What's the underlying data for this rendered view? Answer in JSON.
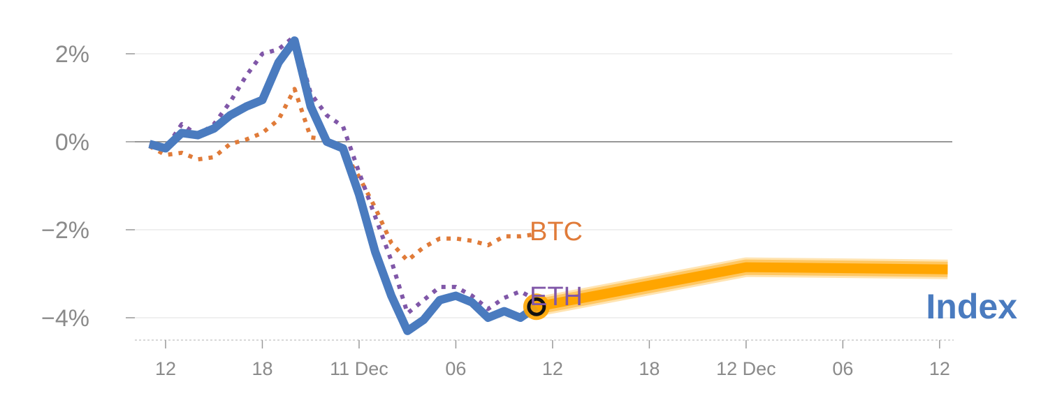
{
  "chart_data": {
    "type": "line",
    "y_tick_labels": [
      "2%",
      "0%",
      "−2%",
      "−4%"
    ],
    "y_tick_values": [
      2,
      0,
      -2,
      -4
    ],
    "x_tick_labels": [
      "12",
      "18",
      "11 Dec",
      "06",
      "12",
      "18",
      "12 Dec",
      "06",
      "12"
    ],
    "x_tick_values": [
      12,
      18,
      24,
      30,
      36,
      42,
      48,
      54,
      60
    ],
    "xlim": [
      10.5,
      61
    ],
    "ylim": [
      -4.5,
      2.3
    ],
    "grid": true,
    "zero_line": true,
    "series": [
      {
        "name": "BTC",
        "color": "#e07b39",
        "style": "dotted",
        "x": [
          11,
          12,
          13,
          14,
          15,
          16,
          17,
          18,
          19,
          20,
          21,
          22,
          23,
          24,
          25,
          26,
          27,
          28,
          29,
          30,
          31,
          32,
          33,
          34,
          35
        ],
        "y": [
          -0.1,
          -0.3,
          -0.25,
          -0.4,
          -0.35,
          -0.05,
          0.05,
          0.2,
          0.5,
          1.2,
          0.1,
          0.05,
          -0.2,
          -0.8,
          -1.5,
          -2.3,
          -2.7,
          -2.4,
          -2.2,
          -2.2,
          -2.25,
          -2.35,
          -2.15,
          -2.15,
          -2.1
        ]
      },
      {
        "name": "ETH",
        "color": "#8057a8",
        "style": "dotted",
        "x": [
          11,
          12,
          13,
          14,
          15,
          16,
          17,
          18,
          19,
          20,
          21,
          22,
          23,
          24,
          25,
          26,
          27,
          28,
          29,
          30,
          31,
          32,
          33,
          34,
          35
        ],
        "y": [
          -0.05,
          -0.15,
          0.4,
          0.15,
          0.4,
          0.9,
          1.5,
          2.0,
          2.1,
          2.4,
          1.1,
          0.6,
          0.35,
          -0.7,
          -1.7,
          -2.7,
          -3.9,
          -3.6,
          -3.3,
          -3.3,
          -3.5,
          -3.8,
          -3.55,
          -3.4,
          -3.6
        ]
      },
      {
        "name": "Index",
        "color": "#4a7bbf",
        "style": "solid",
        "x": [
          11,
          12,
          13,
          14,
          15,
          16,
          17,
          18,
          19,
          20,
          21,
          22,
          23,
          24,
          25,
          26,
          27,
          28,
          29,
          30,
          31,
          32,
          33,
          34,
          35
        ],
        "y": [
          -0.05,
          -0.15,
          0.2,
          0.15,
          0.3,
          0.6,
          0.8,
          0.95,
          1.8,
          2.3,
          0.8,
          0.0,
          -0.15,
          -1.2,
          -2.5,
          -3.5,
          -4.3,
          -4.05,
          -3.6,
          -3.5,
          -3.65,
          -4.0,
          -3.85,
          -4.0,
          -3.75
        ]
      },
      {
        "name": "Forecast",
        "color": "#ffa500",
        "style": "band",
        "x": [
          35,
          48,
          60.5
        ],
        "y": [
          -3.75,
          -2.85,
          -2.9
        ]
      }
    ],
    "annotations": {
      "btc_label": "BTC",
      "eth_label": "ETH",
      "index_label": "Index"
    },
    "current_point": {
      "x": 35,
      "y": -3.75
    }
  }
}
